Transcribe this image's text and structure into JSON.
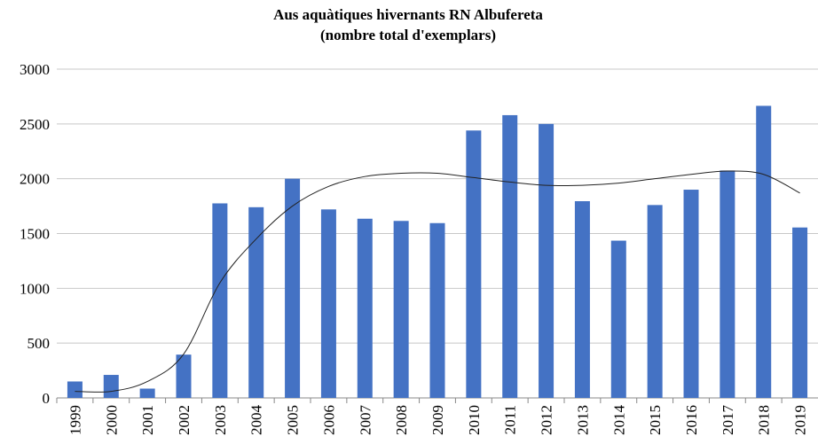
{
  "chart_data": {
    "type": "bar",
    "title": "Aus aquàtiques hivernants RN Albufereta",
    "subtitle": "(nombre total d'exemplars)",
    "categories": [
      "1999",
      "2000",
      "2001",
      "2002",
      "2003",
      "2004",
      "2005",
      "2006",
      "2007",
      "2008",
      "2009",
      "2010",
      "2011",
      "2012",
      "2013",
      "2014",
      "2015",
      "2016",
      "2017",
      "2018",
      "2019"
    ],
    "values": [
      150,
      210,
      85,
      395,
      1775,
      1740,
      2000,
      1720,
      1635,
      1615,
      1595,
      2440,
      2580,
      2500,
      1795,
      1435,
      1760,
      1900,
      2075,
      2665,
      1555
    ],
    "color": "#4472c4",
    "trendline": {
      "color": "#222222",
      "values": [
        60,
        60,
        150,
        400,
        1050,
        1450,
        1750,
        1930,
        2020,
        2050,
        2050,
        2010,
        1970,
        1940,
        1940,
        1960,
        2000,
        2040,
        2070,
        2040,
        1870
      ]
    },
    "ylim": [
      0,
      3000
    ],
    "yticks": [
      0,
      500,
      1000,
      1500,
      2000,
      2500,
      3000
    ],
    "grid": true
  }
}
